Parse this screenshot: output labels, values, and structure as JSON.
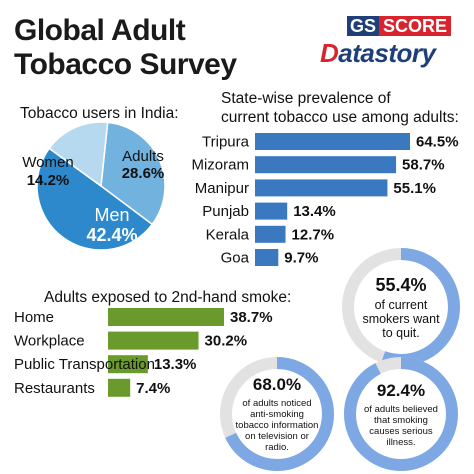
{
  "title": {
    "line1": "Global Adult",
    "line2": "Tobacco Survey"
  },
  "logo": {
    "part1": "GS",
    "part2": "SCORE",
    "brand_initial": "D",
    "brand_rest": "atastory",
    "colors": {
      "navy": "#1f3f7a",
      "red": "#d9232d"
    }
  },
  "sections": {
    "users_label": "Tobacco users in India:",
    "state_label_1": "State-wise prevalence of",
    "state_label_2": "current tobacco use among adults:",
    "smoke_label": "Adults exposed to 2nd-hand smoke:"
  },
  "chart_data": [
    {
      "type": "pie",
      "title": "Tobacco users in India:",
      "slices": [
        {
          "name": "Adults",
          "value": 28.6,
          "label": "28.6%",
          "color": "#72b2df"
        },
        {
          "name": "Men",
          "value": 42.4,
          "label": "42.4%",
          "color": "#2d89cc"
        },
        {
          "name": "Women",
          "value": 14.2,
          "label": "14.2%",
          "color": "#b6d9ef"
        }
      ]
    },
    {
      "type": "bar",
      "orientation": "horizontal",
      "title": "State-wise prevalence of current tobacco use among adults:",
      "categories": [
        "Tripura",
        "Mizoram",
        "Manipur",
        "Punjab",
        "Kerala",
        "Goa"
      ],
      "values": [
        64.5,
        58.7,
        55.1,
        13.4,
        12.7,
        9.7
      ],
      "labels": [
        "64.5%",
        "58.7%",
        "55.1%",
        "13.4%",
        "12.7%",
        "9.7%"
      ],
      "color": "#3a78c0",
      "xlim": [
        0,
        64.5
      ]
    },
    {
      "type": "bar",
      "orientation": "horizontal",
      "title": "Adults exposed to 2nd-hand smoke:",
      "categories": [
        "Home",
        "Workplace",
        "Public Transportation",
        "Restaurants"
      ],
      "values": [
        38.7,
        30.2,
        13.3,
        7.4
      ],
      "labels": [
        "38.7%",
        "30.2%",
        "13.3%",
        "7.4%"
      ],
      "color": "#6a9a2c",
      "xlim": [
        0,
        38.7
      ]
    }
  ],
  "stats": [
    {
      "value": 55.4,
      "pct": "55.4%",
      "lines": [
        "of current",
        "smokers want",
        "to quit."
      ]
    },
    {
      "value": 68.0,
      "pct": "68.0%",
      "lines": [
        "of adults noticed",
        "anti-smoking",
        "tobacco information",
        "on television or",
        "radio."
      ]
    },
    {
      "value": 92.4,
      "pct": "92.4%",
      "lines": [
        "of adults believed",
        "that smoking",
        "causes serious",
        "illness."
      ]
    }
  ],
  "ring_colors": {
    "fill": "#7da8e3",
    "track": "#e2e2e2"
  }
}
